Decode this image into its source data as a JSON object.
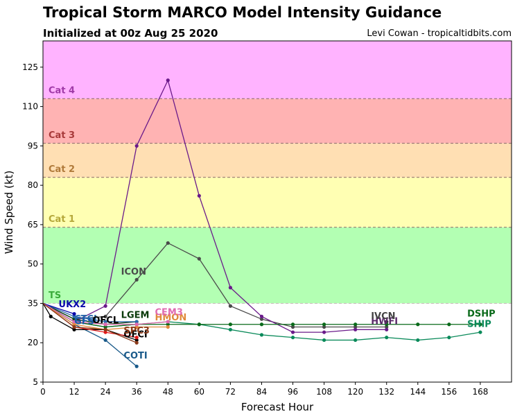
{
  "title": "Tropical Storm MARCO Model Intensity Guidance",
  "subtitle": "Initialized at 00z Aug 25 2020",
  "credit": "Levi Cowan - tropicaltidbits.com",
  "chart_data": {
    "type": "line",
    "xlabel": "Forecast Hour",
    "ylabel": "Wind Speed (kt)",
    "xlim": [
      0,
      180
    ],
    "ylim": [
      5,
      135
    ],
    "xticks": [
      0,
      12,
      24,
      36,
      48,
      60,
      72,
      84,
      96,
      108,
      120,
      132,
      144,
      156,
      168
    ],
    "yticks": [
      5,
      20,
      35,
      50,
      65,
      80,
      95,
      110,
      125
    ],
    "grid": false,
    "legend": "none",
    "bands": [
      {
        "label": "TS",
        "from": 35,
        "to": 64,
        "color": "#b3ffb3",
        "label_color": "#3aab3a",
        "label_y": 37
      },
      {
        "label": "Cat 1",
        "from": 64,
        "to": 83,
        "color": "#ffffb3",
        "label_color": "#b5a83a",
        "label_y": 66
      },
      {
        "label": "Cat 2",
        "from": 83,
        "to": 96,
        "color": "#ffdfb3",
        "label_color": "#b07a3a",
        "label_y": 85
      },
      {
        "label": "Cat 3",
        "from": 96,
        "to": 113,
        "color": "#ffb3b3",
        "label_color": "#a83a3a",
        "label_y": 98
      },
      {
        "label": "Cat 4",
        "from": 113,
        "to": 135,
        "color": "#ffb3ff",
        "label_color": "#a03aa8",
        "label_y": 115
      },
      {
        "label": "",
        "from": 5,
        "to": 35,
        "color": "#ffffff",
        "label_color": "#000000",
        "label_y": 0
      }
    ],
    "series": [
      {
        "name": "ICON",
        "color": "#4a4a4a",
        "x": [
          0,
          12,
          24,
          36,
          48,
          60,
          72,
          84,
          96,
          108,
          120,
          132
        ],
        "y": [
          35,
          29,
          30,
          44,
          58,
          52,
          34,
          29,
          26,
          26,
          26,
          26
        ],
        "label_x": 30,
        "label_y": 46,
        "label_color": "#4a4a4a"
      },
      {
        "name": "HWFI",
        "color": "#6a1a8a",
        "x": [
          0,
          12,
          24,
          36,
          48,
          60,
          72,
          84,
          96,
          108,
          120,
          132
        ],
        "y": [
          35,
          28,
          34,
          95,
          120,
          76,
          41,
          30,
          24,
          24,
          25,
          25
        ],
        "label_x": 126,
        "label_y": 27,
        "label_color": "#5a2a6a"
      },
      {
        "name": "IVCN",
        "color": "#2a2a2a",
        "x": [
          132
        ],
        "y": [
          28
        ],
        "label_x": 126,
        "label_y": 29,
        "label_color": "#444444"
      },
      {
        "name": "SHIP",
        "color": "#0a8a5a",
        "x": [
          0,
          12,
          24,
          36,
          48,
          60,
          72,
          84,
          96,
          108,
          120,
          132,
          144,
          156,
          168
        ],
        "y": [
          35,
          28,
          26,
          27,
          28,
          27,
          25,
          23,
          22,
          21,
          21,
          22,
          21,
          22,
          24
        ],
        "label_x": 163,
        "label_y": 26,
        "label_color": "#0a8a5a"
      },
      {
        "name": "DSHP",
        "color": "#0a6a1a",
        "x": [
          0,
          12,
          24,
          36,
          48,
          60,
          72,
          84,
          96,
          108,
          120,
          132,
          144,
          156,
          168
        ],
        "y": [
          35,
          28,
          26,
          27,
          27,
          27,
          27,
          27,
          27,
          27,
          27,
          27,
          27,
          27,
          27
        ],
        "label_x": 163,
        "label_y": 30,
        "label_color": "#0a6a1a"
      },
      {
        "name": "LGEM",
        "color": "#0a3a0a",
        "x": [
          0,
          12,
          24,
          36
        ],
        "y": [
          35,
          29,
          27,
          28
        ],
        "label_x": 30,
        "label_y": 29.5,
        "label_color": "#0a3a0a"
      },
      {
        "name": "CTCI",
        "color": "#2a6aaa",
        "x": [
          0,
          12,
          24,
          36
        ],
        "y": [
          35,
          30,
          28,
          28
        ],
        "label_x": 12,
        "label_y": 28,
        "label_color": "#2a6aaa"
      },
      {
        "name": "UKX2",
        "color": "#0a0aaa",
        "x": [
          0,
          12
        ],
        "y": [
          35,
          31
        ],
        "label_x": 6,
        "label_y": 33.5,
        "label_color": "#0a0aaa"
      },
      {
        "name": "GFS",
        "color": "#1a5aaa",
        "x": [
          0,
          12
        ],
        "y": [
          35,
          28
        ],
        "label_x": 12,
        "label_y": 27,
        "label_color": "#1a5aaa"
      },
      {
        "name": "COTI",
        "color": "#1a5a8a",
        "x": [
          0,
          12,
          24,
          36
        ],
        "y": [
          35,
          27,
          21,
          11
        ],
        "label_x": 31,
        "label_y": 14,
        "label_color": "#1a5a8a"
      },
      {
        "name": "HMON",
        "color": "#e08a3a",
        "x": [
          0,
          12,
          24,
          36,
          48
        ],
        "y": [
          35,
          27,
          25,
          26,
          26
        ],
        "label_x": 43,
        "label_y": 28.5,
        "label_color": "#e08a3a"
      },
      {
        "name": "CEM3",
        "color": "#e06ab0",
        "x": [
          0,
          12,
          24,
          36,
          48
        ],
        "y": [
          35,
          28,
          27,
          27,
          28
        ],
        "label_x": 43,
        "label_y": 30.5,
        "label_color": "#e06ab0"
      },
      {
        "name": "OFCL",
        "color": "#000000",
        "x": [
          0,
          3,
          12,
          24,
          36
        ],
        "y": [
          35,
          30,
          25,
          25,
          21
        ],
        "label_x": 19,
        "label_y": 27.5,
        "label_color": "#000000"
      },
      {
        "name": "OFCI",
        "color": "#e01a1a",
        "x": [
          0,
          12,
          24,
          36
        ],
        "y": [
          35,
          26,
          24,
          22
        ],
        "label_x": 31,
        "label_y": 22,
        "label_color": "#000000"
      },
      {
        "name": "SPC3",
        "color": "#8a3a1a",
        "x": [
          0,
          12,
          24,
          36
        ],
        "y": [
          35,
          26,
          25,
          20
        ],
        "label_x": 31,
        "label_y": 23.5,
        "label_color": "#8a3a1a"
      }
    ]
  }
}
